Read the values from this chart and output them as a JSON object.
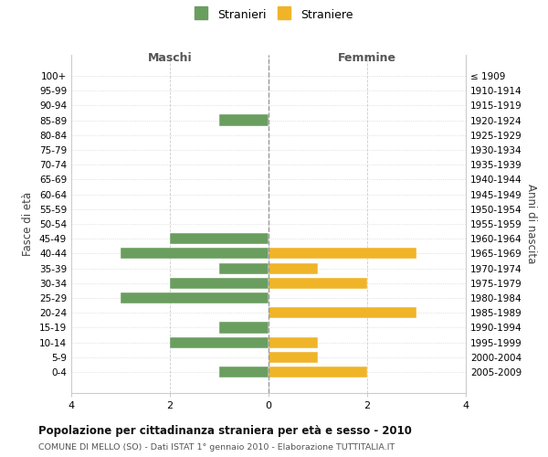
{
  "age_groups": [
    "100+",
    "95-99",
    "90-94",
    "85-89",
    "80-84",
    "75-79",
    "70-74",
    "65-69",
    "60-64",
    "55-59",
    "50-54",
    "45-49",
    "40-44",
    "35-39",
    "30-34",
    "25-29",
    "20-24",
    "15-19",
    "10-14",
    "5-9",
    "0-4"
  ],
  "birth_years": [
    "≤ 1909",
    "1910-1914",
    "1915-1919",
    "1920-1924",
    "1925-1929",
    "1930-1934",
    "1935-1939",
    "1940-1944",
    "1945-1949",
    "1950-1954",
    "1955-1959",
    "1960-1964",
    "1965-1969",
    "1970-1974",
    "1975-1979",
    "1980-1984",
    "1985-1989",
    "1990-1994",
    "1995-1999",
    "2000-2004",
    "2005-2009"
  ],
  "maschi": [
    0,
    0,
    0,
    1,
    0,
    0,
    0,
    0,
    0,
    0,
    0,
    2,
    3,
    1,
    2,
    3,
    0,
    1,
    2,
    0,
    1
  ],
  "femmine": [
    0,
    0,
    0,
    0,
    0,
    0,
    0,
    0,
    0,
    0,
    0,
    0,
    3,
    1,
    2,
    0,
    3,
    0,
    1,
    1,
    2
  ],
  "color_maschi": "#6a9e5f",
  "color_femmine": "#f0b429",
  "title": "Popolazione per cittadinanza straniera per età e sesso - 2010",
  "subtitle": "COMUNE DI MELLO (SO) - Dati ISTAT 1° gennaio 2010 - Elaborazione TUTTITALIA.IT",
  "xlabel_left": "Maschi",
  "xlabel_right": "Femmine",
  "ylabel_left": "Fasce di età",
  "ylabel_right": "Anni di nascita",
  "xlim": 4,
  "legend_stranieri": "Stranieri",
  "legend_straniere": "Straniere",
  "background_color": "#ffffff",
  "grid_color": "#cccccc"
}
